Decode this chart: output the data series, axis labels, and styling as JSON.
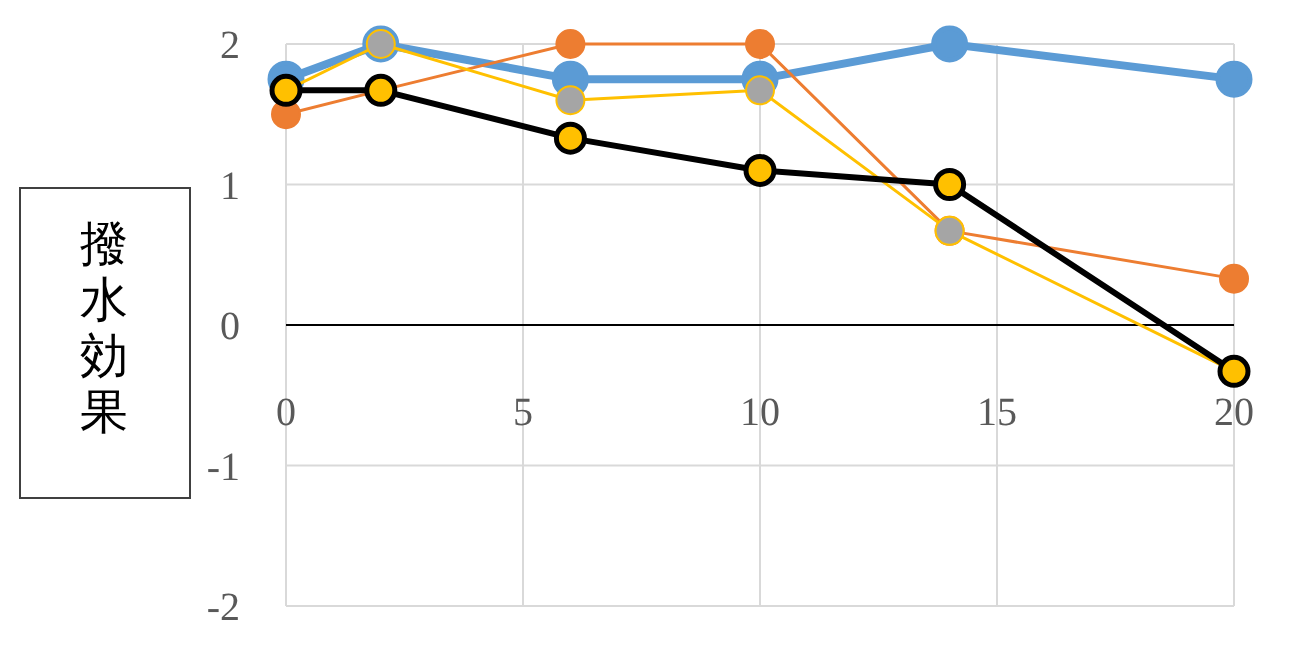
{
  "chart_data": {
    "type": "line",
    "ylabel": "撥水効果",
    "x": [
      0,
      2,
      6,
      10,
      14,
      20
    ],
    "xlim": [
      0,
      20
    ],
    "xticks": [
      0,
      5,
      10,
      15,
      20
    ],
    "ylim": [
      -2,
      2
    ],
    "yticks": [
      -2,
      -1,
      0,
      1,
      2
    ],
    "grid": true,
    "marker": "circle",
    "line_style": "solid",
    "series": [
      {
        "color": "#5b9bd5",
        "colors": [
          "#5b9bd5",
          "#5b9bd5",
          "#5b9bd5",
          "#5b9bd5",
          "#5b9bd5",
          "#5b9bd5"
        ],
        "values": [
          1.75,
          2,
          1.75,
          1.75,
          2,
          1.75
        ]
      },
      {
        "color": "#ed7d31",
        "colors": [
          "#ed7d31",
          "#ed7d31",
          "#ed7d31",
          "#ed7d31",
          "#ed7d31",
          "#ed7d31"
        ],
        "values": [
          1.5,
          1.67,
          2,
          2,
          0.67,
          0.33
        ]
      },
      {
        "color": "#ffc000",
        "colors": [
          "#a5a5a5",
          "#a5a5a5",
          "#a5a5a5",
          "#a5a5a5",
          "#a5a5a5",
          "#a5a5a5"
        ],
        "values": [
          1.67,
          2,
          1.6,
          1.67,
          0.67,
          -0.33
        ]
      },
      {
        "color": "#000000",
        "colors": [
          "#ffc000",
          "#ffc000",
          "#ffc000",
          "#ffc000",
          "#ffc000",
          "#ffc000"
        ],
        "values": [
          1.67,
          1.67,
          1.33,
          1.1,
          1,
          -0.33
        ]
      }
    ]
  }
}
